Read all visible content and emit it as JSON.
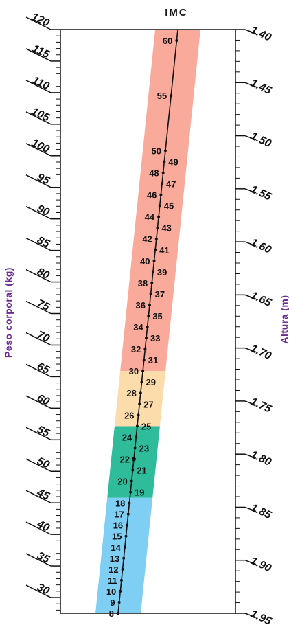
{
  "chart_data": {
    "type": "nomogram",
    "title": "IMC",
    "left_axis": {
      "label": "Peso corporal (kg)",
      "range": [
        27.5,
        120
      ],
      "ticks": [
        "120",
        "115",
        "110",
        "105",
        "100",
        "95",
        "90",
        "85",
        "80",
        "75",
        "70",
        "65",
        "60",
        "55",
        "50",
        "45",
        "40",
        "35",
        "30"
      ]
    },
    "right_axis": {
      "label": "Altura (m)",
      "range": [
        1.4,
        1.95
      ],
      "ticks": [
        "1.40",
        "1.45",
        "1.50",
        "1.55",
        "1.60",
        "1.65",
        "1.70",
        "1.75",
        "1.80",
        "1.85",
        "1.90",
        "1.95"
      ]
    },
    "bmi_scale": {
      "range": [
        8,
        61
      ],
      "labeled_values": [
        8,
        9,
        10,
        11,
        12,
        13,
        14,
        15,
        16,
        17,
        18,
        19,
        20,
        21,
        22,
        23,
        24,
        25,
        26,
        27,
        28,
        29,
        30,
        31,
        32,
        33,
        34,
        35,
        36,
        37,
        38,
        39,
        40,
        41,
        42,
        43,
        44,
        45,
        46,
        47,
        48,
        49,
        50,
        55,
        60
      ],
      "highlighted_value": 22,
      "bands": [
        {
          "from": 8,
          "to": 18.5,
          "color": "#7ecff3"
        },
        {
          "from": 18.5,
          "to": 25,
          "color": "#2fbc9b"
        },
        {
          "from": 25,
          "to": 30,
          "color": "#fcdcab"
        },
        {
          "from": 30,
          "to": 61,
          "color": "#f9aa9a"
        }
      ]
    }
  }
}
